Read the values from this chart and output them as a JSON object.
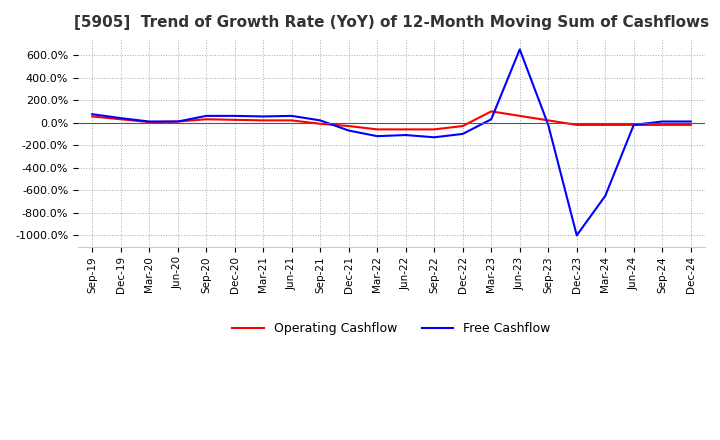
{
  "title": "[5905]  Trend of Growth Rate (YoY) of 12-Month Moving Sum of Cashflows",
  "title_fontsize": 11,
  "background_color": "#ffffff",
  "grid_color": "#aaaaaa",
  "ylim": [
    -1100,
    750
  ],
  "yticks": [
    600,
    400,
    200,
    0,
    -200,
    -400,
    -600,
    -800,
    -1000
  ],
  "x_labels": [
    "Sep-19",
    "Dec-19",
    "Mar-20",
    "Jun-20",
    "Sep-20",
    "Dec-20",
    "Mar-21",
    "Jun-21",
    "Sep-21",
    "Dec-21",
    "Mar-22",
    "Jun-22",
    "Sep-22",
    "Dec-22",
    "Mar-23",
    "Jun-23",
    "Sep-23",
    "Dec-23",
    "Mar-24",
    "Jun-24",
    "Sep-24",
    "Dec-24"
  ],
  "operating_cashflow": [
    55,
    30,
    5,
    10,
    30,
    25,
    20,
    20,
    -10,
    -30,
    -60,
    -60,
    -60,
    -30,
    100,
    60,
    20,
    -20,
    -20,
    -20,
    -20,
    -20
  ],
  "free_cashflow": [
    75,
    40,
    10,
    10,
    60,
    60,
    55,
    60,
    20,
    -70,
    -120,
    -110,
    -130,
    -100,
    30,
    650,
    -20,
    -1000,
    -650,
    -20,
    10,
    10
  ],
  "op_color": "#ff0000",
  "free_color": "#0000ff",
  "legend_labels": [
    "Operating Cashflow",
    "Free Cashflow"
  ]
}
